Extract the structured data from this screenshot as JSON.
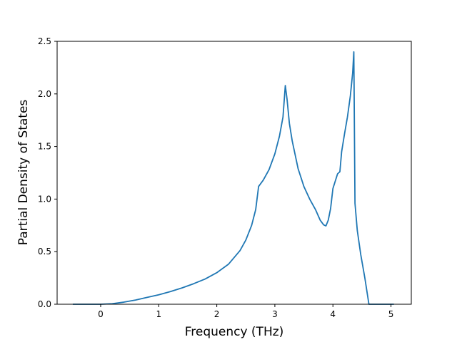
{
  "chart_data": {
    "type": "line",
    "title": "",
    "xlabel": "Frequency (THz)",
    "ylabel": "Partial Density of States",
    "xlim": [
      -0.75,
      5.35
    ],
    "ylim": [
      0.0,
      2.5
    ],
    "xticks": [
      0,
      1,
      2,
      3,
      4,
      5
    ],
    "yticks": [
      0.0,
      0.5,
      1.0,
      1.5,
      2.0,
      2.5
    ],
    "xtick_labels": [
      "0",
      "1",
      "2",
      "3",
      "4",
      "5"
    ],
    "ytick_labels": [
      "0.0",
      "0.5",
      "1.0",
      "1.5",
      "2.0",
      "2.5"
    ],
    "grid": false,
    "legend": "none",
    "series": [
      {
        "color": "#1f77b4",
        "x": [
          -0.48,
          -0.3,
          0.0,
          0.2,
          0.4,
          0.6,
          0.8,
          1.0,
          1.2,
          1.4,
          1.6,
          1.8,
          2.0,
          2.2,
          2.4,
          2.5,
          2.6,
          2.67,
          2.72,
          2.8,
          2.9,
          3.0,
          3.08,
          3.14,
          3.18,
          3.21,
          3.25,
          3.3,
          3.4,
          3.5,
          3.6,
          3.7,
          3.78,
          3.84,
          3.88,
          3.92,
          3.96,
          4.0,
          4.08,
          4.12,
          4.15,
          4.2,
          4.25,
          4.3,
          4.34,
          4.36,
          4.38,
          4.42,
          4.48,
          4.55,
          4.62,
          4.7,
          4.85,
          5.05
        ],
        "y": [
          0.0,
          0.0,
          0.0,
          0.005,
          0.02,
          0.04,
          0.065,
          0.09,
          0.12,
          0.155,
          0.195,
          0.24,
          0.3,
          0.38,
          0.51,
          0.61,
          0.75,
          0.9,
          1.12,
          1.18,
          1.28,
          1.43,
          1.6,
          1.78,
          2.08,
          1.95,
          1.72,
          1.55,
          1.29,
          1.12,
          1.0,
          0.9,
          0.8,
          0.755,
          0.745,
          0.8,
          0.91,
          1.1,
          1.24,
          1.26,
          1.45,
          1.62,
          1.78,
          1.98,
          2.2,
          2.4,
          0.96,
          0.7,
          0.47,
          0.25,
          0.0,
          0.0,
          0.0,
          0.0
        ]
      }
    ]
  }
}
